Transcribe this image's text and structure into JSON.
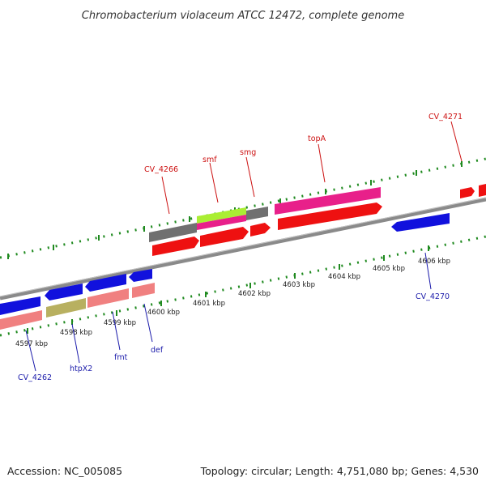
{
  "title": "Chromobacterium violaceum ATCC 12472, complete genome",
  "footer": {
    "accession": "Accession: NC_005085",
    "summary": "Topology: circular; Length: 4,751,080 bp; Genes: 4,530"
  },
  "colors": {
    "backbone": "#8a8a8a",
    "tick_dot": "#1f8a1f",
    "label_red": "#cc1111",
    "label_blue": "#1a1aaa",
    "gene_red": "#ee1111",
    "gene_blue": "#1111dd",
    "gene_magenta": "#e8208a",
    "gene_grey": "#707070",
    "gene_lime": "#aaee33",
    "gene_salmon": "#f08080",
    "gene_olive": "#b8b060"
  },
  "scale_labels": [
    "4597 kbp",
    "4598 kbp",
    "4599 kbp",
    "4600 kbp",
    "4601 kbp",
    "4602 kbp",
    "4603 kbp",
    "4604 kbp",
    "4605 kbp",
    "4606 kbp"
  ],
  "gene_labels": {
    "top": [
      "CV_4266",
      "smf",
      "smg",
      "topA",
      "CV_4271"
    ],
    "bottom": [
      "CV_4262",
      "htpX2",
      "fmt",
      "def",
      "CV_4270"
    ]
  }
}
